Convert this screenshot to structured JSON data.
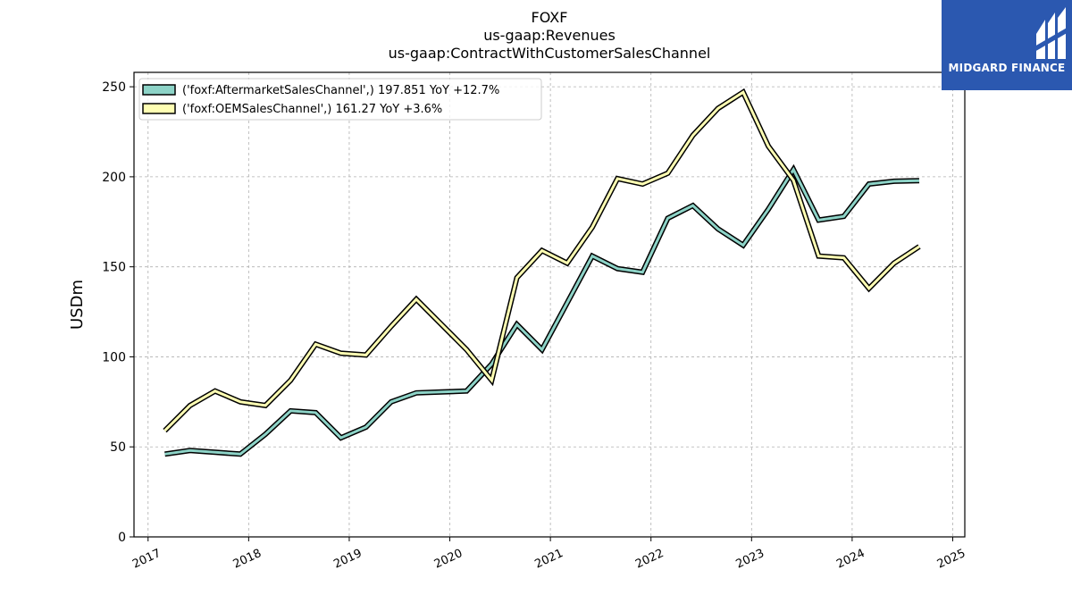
{
  "chart_data": {
    "type": "line",
    "title": "FOXF",
    "subtitle_lines": [
      "us-gaap:Revenues",
      "us-gaap:ContractWithCustomerSalesChannel"
    ],
    "ylabel": "USDm",
    "xlabel": "",
    "ylim": [
      0,
      258
    ],
    "xlim": [
      2016.86,
      2025.12
    ],
    "yticks": [
      0,
      50,
      100,
      150,
      200,
      250
    ],
    "xticks": [
      "2017",
      "2018",
      "2019",
      "2020",
      "2021",
      "2022",
      "2023",
      "2024",
      "2025"
    ],
    "grid": true,
    "legend_position": "top-left",
    "series": [
      {
        "name": "('foxf:AftermarketSalesChannel',) 197.851 YoY +12.7%",
        "color": "#8dd3c7",
        "points": [
          [
            "2017-03",
            46
          ],
          [
            "2017-06",
            48
          ],
          [
            "2017-09",
            47
          ],
          [
            "2017-12",
            46
          ],
          [
            "2018-03",
            57
          ],
          [
            "2018-06",
            70
          ],
          [
            "2018-09",
            69
          ],
          [
            "2018-12",
            55
          ],
          [
            "2019-03",
            61
          ],
          [
            "2019-06",
            75
          ],
          [
            "2019-09",
            80
          ],
          [
            "2019-12",
            80.5
          ],
          [
            "2020-03",
            81
          ],
          [
            "2020-06",
            96
          ],
          [
            "2020-09",
            118
          ],
          [
            "2020-12",
            104
          ],
          [
            "2021-03",
            130
          ],
          [
            "2021-06",
            156
          ],
          [
            "2021-09",
            149
          ],
          [
            "2021-12",
            147
          ],
          [
            "2022-03",
            177
          ],
          [
            "2022-06",
            184
          ],
          [
            "2022-09",
            171
          ],
          [
            "2022-12",
            162
          ],
          [
            "2023-03",
            182
          ],
          [
            "2023-06",
            204
          ],
          [
            "2023-09",
            176
          ],
          [
            "2023-12",
            178
          ],
          [
            "2024-03",
            196
          ],
          [
            "2024-06",
            197.5
          ],
          [
            "2024-09",
            197.851
          ]
        ]
      },
      {
        "name": "('foxf:OEMSalesChannel',) 161.27 YoY +3.6%",
        "color": "#ffffb3",
        "points": [
          [
            "2017-03",
            59
          ],
          [
            "2017-06",
            73
          ],
          [
            "2017-09",
            81
          ],
          [
            "2017-12",
            75
          ],
          [
            "2018-03",
            73
          ],
          [
            "2018-06",
            87
          ],
          [
            "2018-09",
            107
          ],
          [
            "2018-12",
            102
          ],
          [
            "2019-03",
            101
          ],
          [
            "2019-06",
            117
          ],
          [
            "2019-09",
            132
          ],
          [
            "2019-12",
            118
          ],
          [
            "2020-03",
            104
          ],
          [
            "2020-06",
            87
          ],
          [
            "2020-09",
            144
          ],
          [
            "2020-12",
            159
          ],
          [
            "2021-03",
            152
          ],
          [
            "2021-06",
            172
          ],
          [
            "2021-09",
            199
          ],
          [
            "2021-12",
            196
          ],
          [
            "2022-03",
            202
          ],
          [
            "2022-06",
            223
          ],
          [
            "2022-09",
            238
          ],
          [
            "2022-12",
            247
          ],
          [
            "2023-03",
            217
          ],
          [
            "2023-06",
            198
          ],
          [
            "2023-09",
            156
          ],
          [
            "2023-12",
            155
          ],
          [
            "2024-03",
            138
          ],
          [
            "2024-06",
            152
          ],
          [
            "2024-09",
            161.27
          ]
        ]
      }
    ]
  },
  "logo": {
    "text": "MIDGARD FINANCE",
    "background": "#2b58b0"
  }
}
